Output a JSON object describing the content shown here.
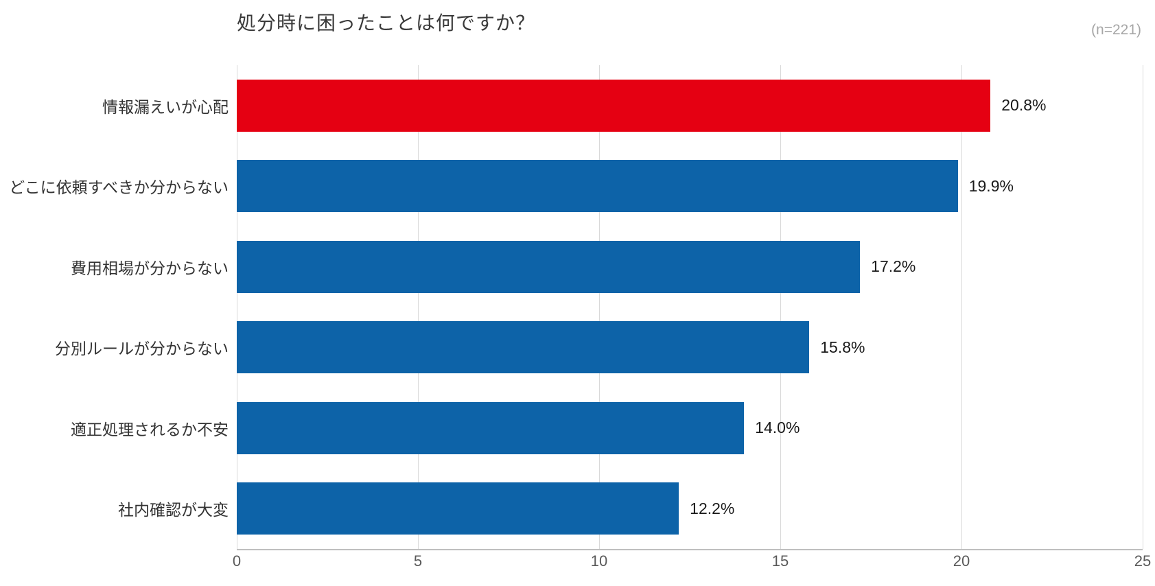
{
  "header": {
    "title": "処分時に困ったことは何ですか？",
    "sample_size": "(n=221)"
  },
  "chart_data": {
    "type": "bar",
    "orientation": "horizontal",
    "title": "処分時に困ったことは何ですか？",
    "sample_note": "(n=221)",
    "categories": [
      "情報漏えいが心配",
      "どこに依頼すべきか分からない",
      "費用相場が分からない",
      "分別ルールが分からない",
      "適正処理されるか不安",
      "社内確認が大変"
    ],
    "values": [
      20.8,
      19.9,
      17.2,
      15.8,
      14.0,
      12.2
    ],
    "value_labels": [
      "20.8%",
      "19.9%",
      "17.2%",
      "15.8%",
      "14.0%",
      "12.2%"
    ],
    "bar_colors": [
      "#e50012",
      "#0d63a8",
      "#0d63a8",
      "#0d63a8",
      "#0d63a8",
      "#0d63a8"
    ],
    "highlight_color": "#e50012",
    "default_bar_color": "#0d63a8",
    "xlabel": "",
    "ylabel": "",
    "xlim": [
      0,
      25
    ],
    "x_ticks": [
      0,
      5,
      10,
      15,
      20,
      25
    ],
    "x_tick_labels": [
      "0",
      "5",
      "10",
      "15",
      "20",
      "25"
    ],
    "grid": true,
    "legend": "none"
  }
}
